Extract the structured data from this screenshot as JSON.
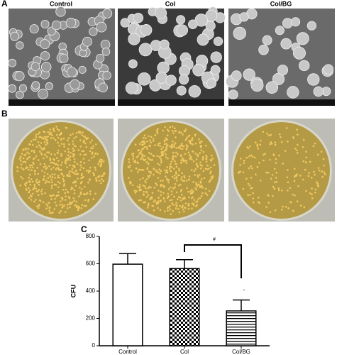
{
  "panels": {
    "a": {
      "label": "A",
      "titles": [
        "Control",
        "Col",
        "Col/BG"
      ]
    },
    "b": {
      "label": "B"
    },
    "c": {
      "label": "C"
    }
  },
  "chart_data": {
    "type": "bar",
    "categories": [
      "Control",
      "Col",
      "Col/BG"
    ],
    "values": [
      597,
      565,
      255
    ],
    "errors": [
      78,
      65,
      80
    ],
    "patterns": [
      "none",
      "checkerboard",
      "horizontal-lines"
    ],
    "color": "#000000",
    "ylabel": "CFU",
    "ylim": [
      0,
      800
    ],
    "yticks": [
      0,
      200,
      400,
      600,
      800
    ],
    "annotations": [
      "#",
      "*"
    ]
  }
}
